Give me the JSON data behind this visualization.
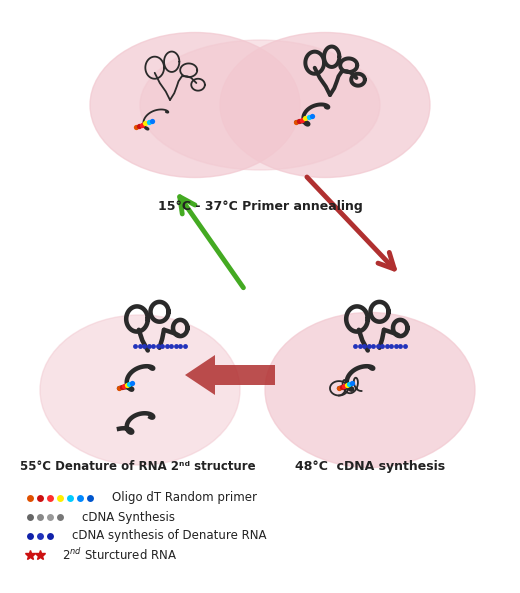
{
  "bg_color": "#ffffff",
  "pink": "#f2c8d0",
  "dark": "#2a2a2a",
  "label_top": "15°C - 37°C Primer annealing",
  "label_br": "48°C  cDNA synthesis",
  "label_bl": "55°C Denature of RNA 2ⁿᵈ structure",
  "primer_colors": [
    "#e05000",
    "#cc1010",
    "#ff2020",
    "#ffee00",
    "#00ccff",
    "#0077ff"
  ],
  "cdna_gray": "#888888",
  "cdna_blue": "#2233bb",
  "star_red": "#cc1111",
  "arrow_red": "#b03030",
  "arrow_green": "#44aa22"
}
